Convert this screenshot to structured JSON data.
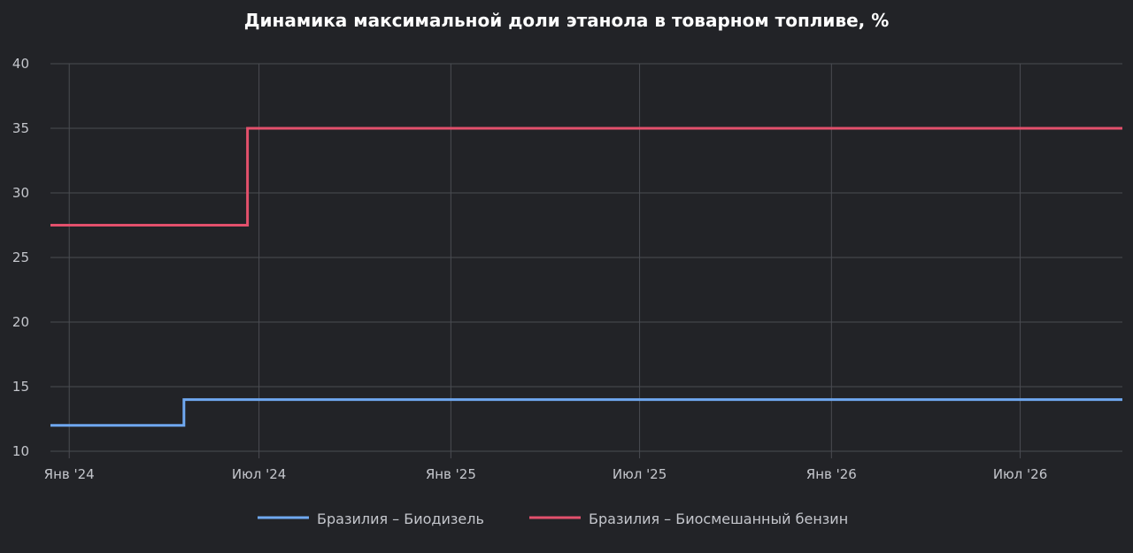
{
  "chart_data": {
    "type": "line",
    "title": "Динамика максимальной доли этанола в товарном топливе, %",
    "xlabel": "",
    "ylabel": "",
    "ylim": [
      10,
      40
    ],
    "yticks": [
      10,
      15,
      20,
      25,
      30,
      35,
      40
    ],
    "xlim": [
      "2023-12-14",
      "2026-10-07"
    ],
    "xticks": [
      {
        "date": "2024-01-01",
        "label": "Янв '24"
      },
      {
        "date": "2024-07-01",
        "label": "Июл '24"
      },
      {
        "date": "2025-01-01",
        "label": "Янв '25"
      },
      {
        "date": "2025-07-01",
        "label": "Июл '25"
      },
      {
        "date": "2026-01-01",
        "label": "Янв '26"
      },
      {
        "date": "2026-07-01",
        "label": "Июл '26"
      }
    ],
    "grid": true,
    "legend_position": "bottom",
    "series": [
      {
        "name": "Бразилия – Биодизель",
        "color": "#6fa8f0",
        "step": true,
        "points": [
          {
            "x": "2023-12-14",
            "y": 12
          },
          {
            "x": "2024-04-20",
            "y": 14
          },
          {
            "x": "2026-10-07",
            "y": 14
          }
        ]
      },
      {
        "name": "Бразилия – Биосмешанный бензин",
        "color": "#e3506c",
        "step": true,
        "points": [
          {
            "x": "2023-12-14",
            "y": 27.5
          },
          {
            "x": "2024-06-20",
            "y": 35
          },
          {
            "x": "2026-10-07",
            "y": 35
          }
        ]
      }
    ]
  }
}
